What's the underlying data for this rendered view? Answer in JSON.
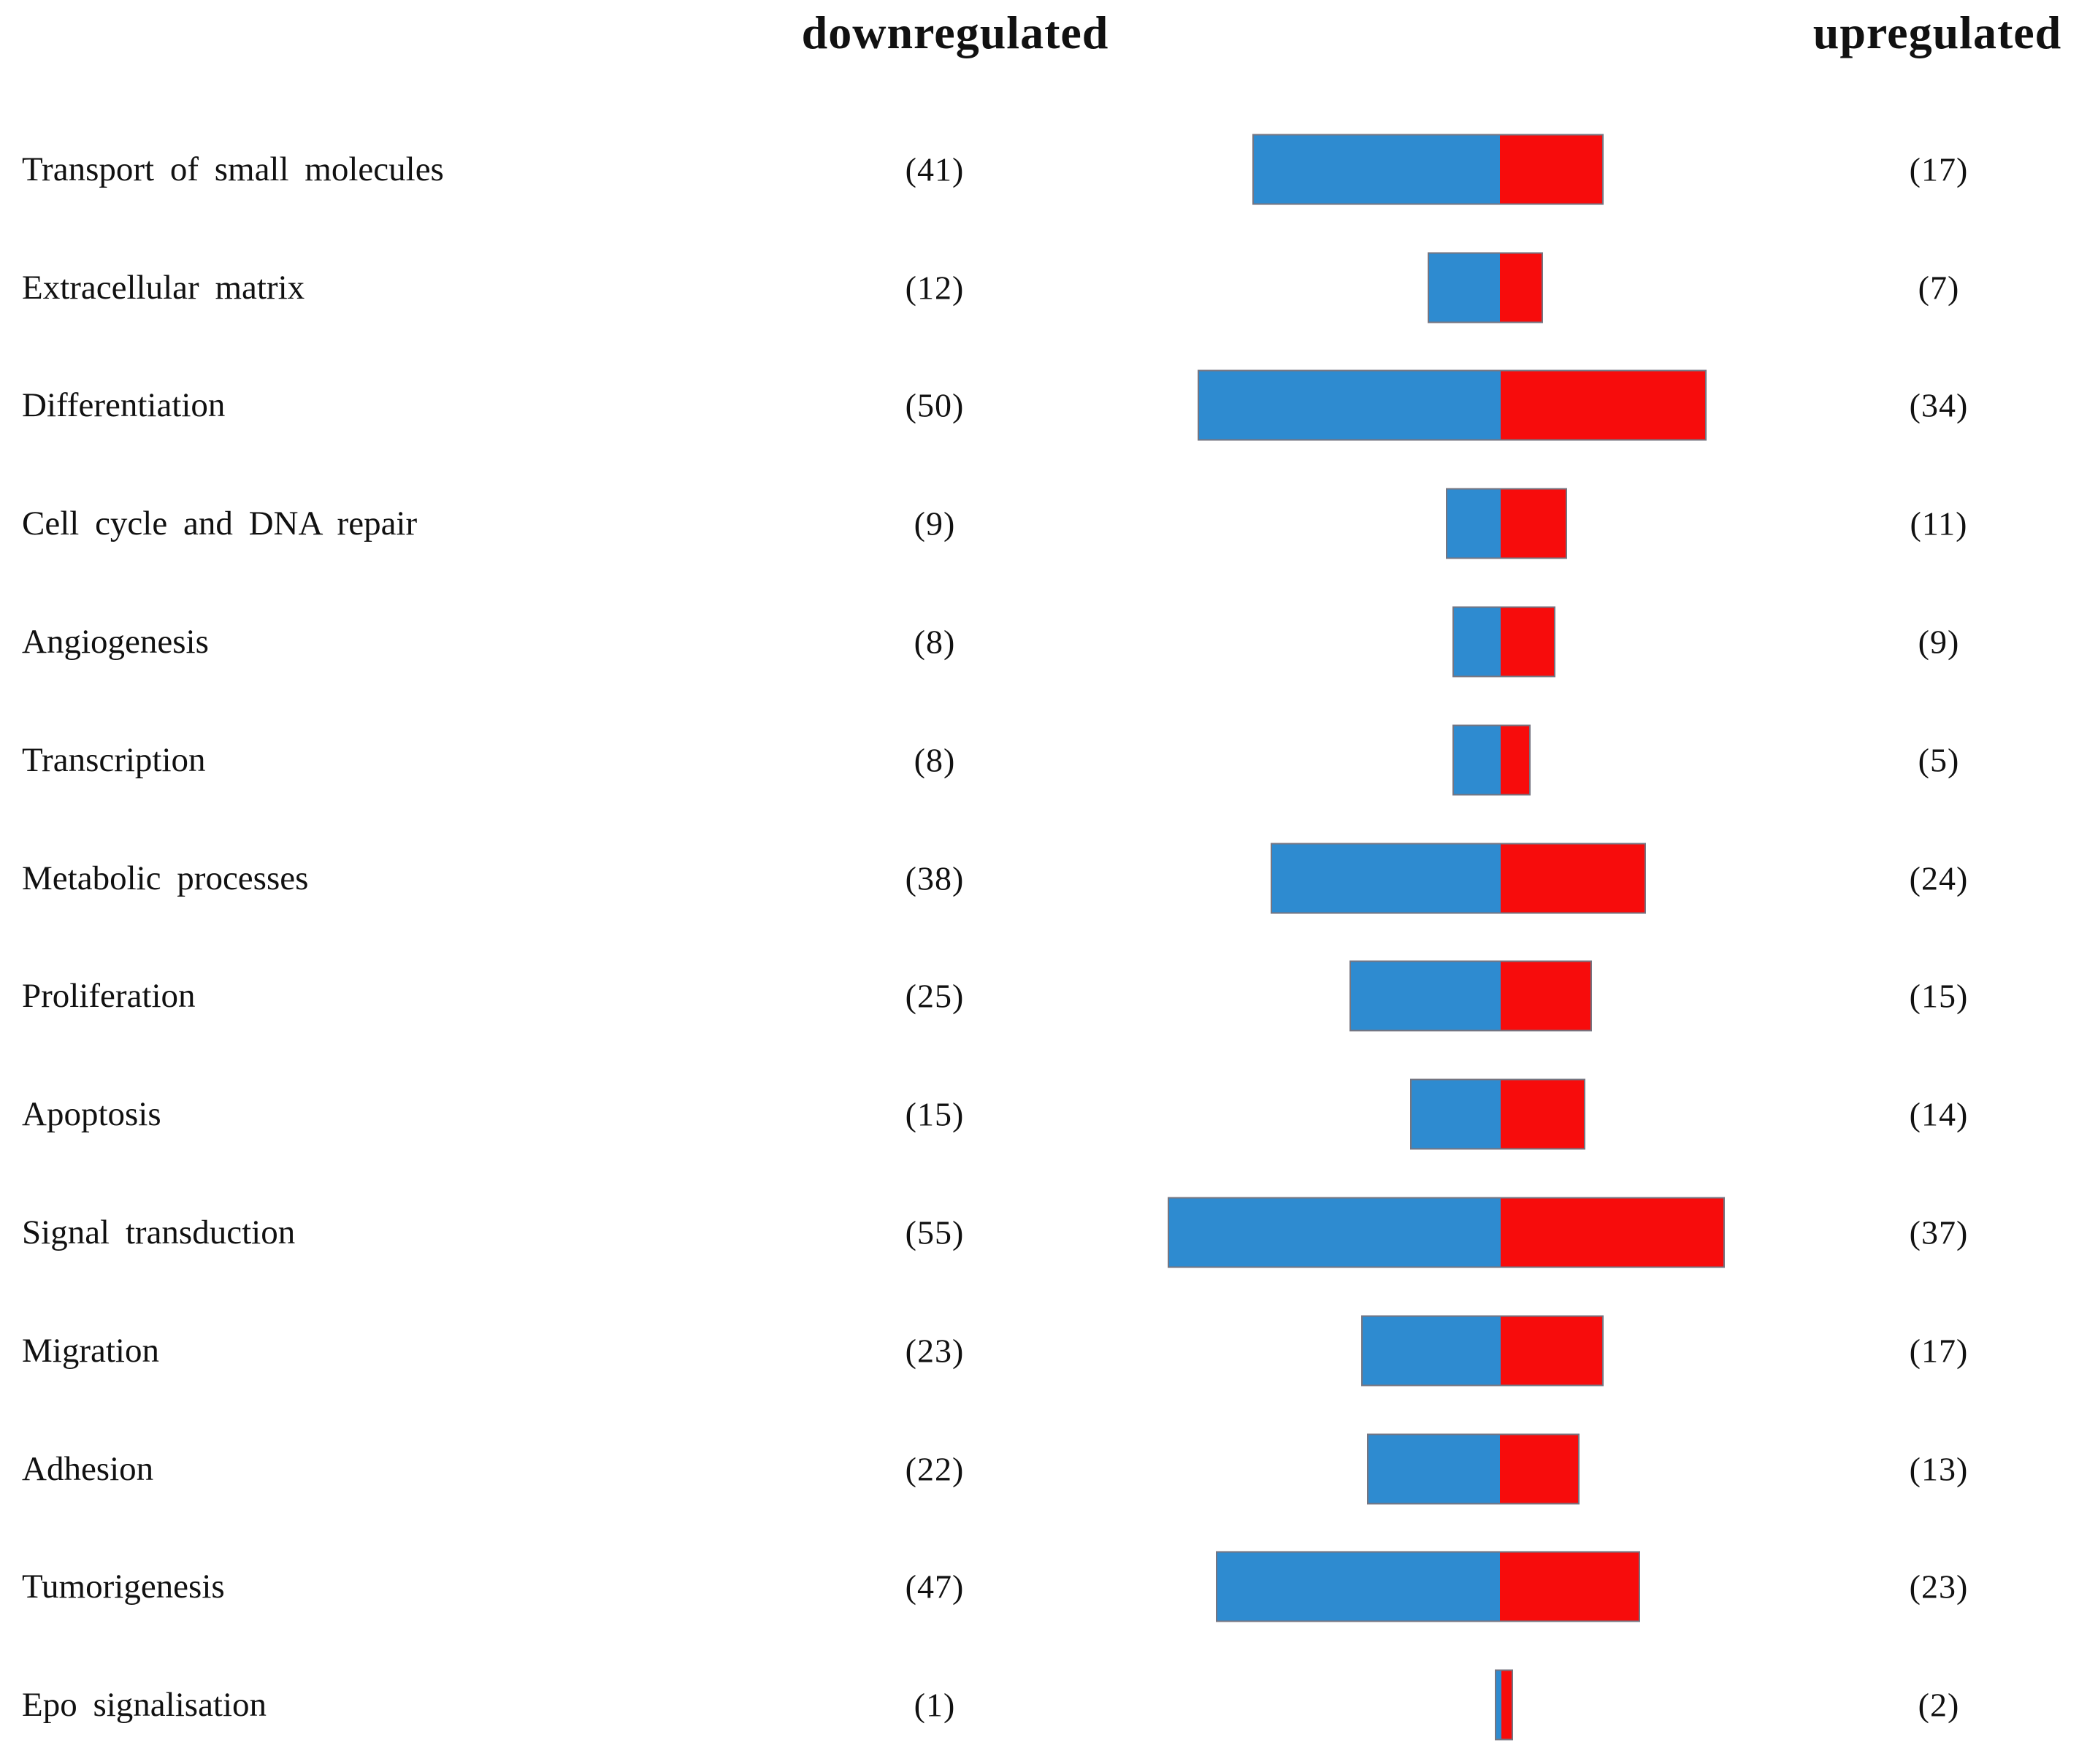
{
  "figure": {
    "left_header": "downregulated",
    "right_header": "upregulated"
  },
  "chart_data": {
    "type": "bar",
    "orientation": "horizontal-diverging",
    "title": "",
    "categories": [
      "Transport of small molecules",
      "Extracellular matrix",
      "Differentiation",
      "Cell cycle and DNA repair",
      "Angiogenesis",
      "Transcription",
      "Metabolic processes",
      "Proliferation",
      "Apoptosis",
      "Signal transduction",
      "Migration",
      "Adhesion",
      "Tumorigenesis",
      "Epo signalisation"
    ],
    "series": [
      {
        "name": "downregulated",
        "side": "left",
        "color": "#2E8BD0",
        "values": [
          41,
          12,
          50,
          9,
          8,
          8,
          38,
          25,
          15,
          55,
          23,
          22,
          47,
          1
        ]
      },
      {
        "name": "upregulated",
        "side": "right",
        "color": "#F70C0C",
        "values": [
          17,
          7,
          34,
          11,
          9,
          5,
          24,
          15,
          14,
          37,
          17,
          13,
          23,
          2
        ]
      }
    ],
    "value_label_format": "(n)",
    "value_labels_down": [
      "(41)",
      "(12)",
      "(50)",
      "(9)",
      "(8)",
      "(8)",
      "(38)",
      "(25)",
      "(15)",
      "(55)",
      "(23)",
      "(22)",
      "(47)",
      "(1)"
    ],
    "value_labels_up": [
      "(17)",
      "(7)",
      "(34)",
      "(11)",
      "(9)",
      "(5)",
      "(24)",
      "(15)",
      "(14)",
      "(37)",
      "(17)",
      "(13)",
      "(23)",
      "(2)"
    ],
    "grid": false,
    "axes_shown": false,
    "legend_position": "top-as-column-headers"
  }
}
